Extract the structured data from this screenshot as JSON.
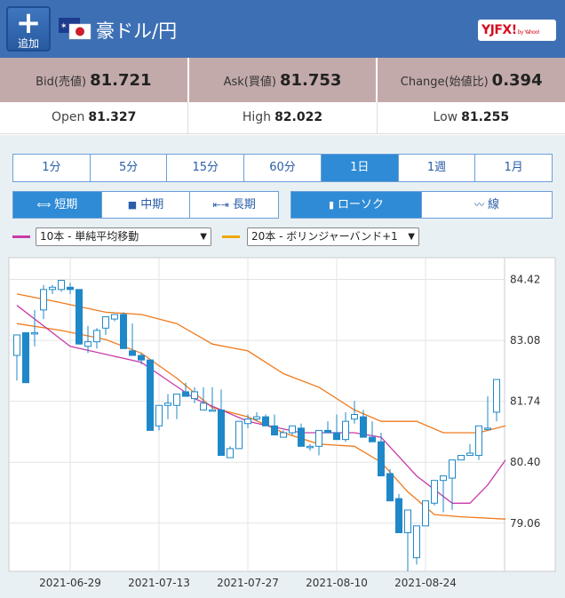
{
  "header": {
    "add_label": "追加",
    "title": "豪ドル/円",
    "logo": "YJFX!",
    "logo_small": "by Yahoo!"
  },
  "quote": {
    "bid_label": "Bid(売値)",
    "bid": "81.721",
    "ask_label": "Ask(買値)",
    "ask": "81.753",
    "change_label": "Change(始値比)",
    "change": "0.394"
  },
  "ohl": {
    "open_label": "Open",
    "open": "81.327",
    "high_label": "High",
    "high": "82.022",
    "low_label": "Low",
    "low": "81.255"
  },
  "period_tabs": [
    {
      "label": "1分"
    },
    {
      "label": "5分"
    },
    {
      "label": "15分"
    },
    {
      "label": "60分"
    },
    {
      "label": "1日"
    },
    {
      "label": "1週"
    },
    {
      "label": "1月"
    }
  ],
  "active_period": "1日",
  "term_tabs": [
    {
      "label": "短期"
    },
    {
      "label": "中期"
    },
    {
      "label": "長期"
    }
  ],
  "type_tabs": [
    {
      "label": "ローソク"
    },
    {
      "label": "線"
    }
  ],
  "indicators": {
    "ma": {
      "label": "10本 - 単純平均移動",
      "color": "#c93aa8"
    },
    "bb": {
      "label": "20本 - ボリンジャーバンド+1",
      "color": "#f0a800"
    }
  },
  "colors": {
    "candle": "#1e88c8",
    "ma": "#c93aa8",
    "bb": "#f07a1c"
  },
  "chart_data": {
    "type": "candlestick",
    "y_ticks": [
      84.42,
      83.08,
      81.74,
      80.4,
      79.06
    ],
    "ylim": [
      78.0,
      84.9
    ],
    "x_tick_labels": [
      {
        "label": "2021-06-29",
        "i": 6
      },
      {
        "label": "2021-07-13",
        "i": 16
      },
      {
        "label": "2021-07-27",
        "i": 26
      },
      {
        "label": "2021-08-10",
        "i": 36
      },
      {
        "label": "2021-08-24",
        "i": 46
      }
    ],
    "ohlc": [
      [
        82.75,
        82.9,
        82.2,
        83.2
      ],
      [
        83.25,
        82.75,
        82.5,
        82.15
      ],
      [
        83.25,
        83.75,
        82.95,
        83.25
      ],
      [
        83.75,
        84.3,
        83.55,
        84.2
      ],
      [
        84.2,
        84.3,
        84.1,
        84.25
      ],
      [
        84.2,
        84.3,
        84.15,
        84.4
      ],
      [
        84.25,
        84.35,
        84.1,
        84.2
      ],
      [
        84.2,
        83.8,
        83.75,
        83.0
      ],
      [
        82.95,
        83.4,
        82.8,
        83.05
      ],
      [
        83.05,
        83.35,
        82.9,
        83.3
      ],
      [
        83.35,
        83.6,
        83.2,
        83.6
      ],
      [
        83.55,
        83.6,
        83.5,
        83.65
      ],
      [
        83.65,
        83.7,
        83.55,
        82.9
      ],
      [
        82.85,
        83.45,
        82.8,
        82.75
      ],
      [
        82.75,
        82.8,
        82.55,
        82.65
      ],
      [
        82.65,
        82.55,
        82.35,
        81.1
      ],
      [
        81.2,
        81.35,
        81.1,
        81.65
      ],
      [
        81.65,
        81.9,
        81.35,
        81.7
      ],
      [
        81.65,
        81.9,
        81.35,
        81.9
      ],
      [
        81.95,
        82.15,
        82.15,
        81.85
      ],
      [
        81.8,
        82.05,
        81.7,
        81.95
      ],
      [
        81.55,
        82.05,
        81.55,
        81.7
      ],
      [
        81.55,
        82.05,
        81.55,
        81.55
      ],
      [
        81.55,
        82.0,
        81.45,
        80.55
      ],
      [
        80.5,
        80.75,
        80.5,
        80.7
      ],
      [
        80.7,
        81.0,
        80.7,
        81.3
      ],
      [
        81.25,
        81.45,
        81.15,
        81.35
      ],
      [
        81.35,
        81.5,
        81.3,
        81.4
      ],
      [
        81.4,
        81.45,
        81.2,
        81.2
      ],
      [
        81.2,
        81.45,
        81.2,
        81.0
      ],
      [
        80.95,
        81.1,
        80.95,
        81.05
      ],
      [
        81.05,
        81.2,
        81.0,
        81.2
      ],
      [
        81.15,
        81.25,
        81.0,
        80.75
      ],
      [
        80.75,
        80.8,
        80.65,
        80.75
      ],
      [
        80.75,
        80.95,
        80.55,
        81.1
      ],
      [
        81.1,
        81.3,
        81.05,
        81.05
      ],
      [
        81.05,
        81.45,
        81.0,
        80.9
      ],
      [
        80.9,
        81.5,
        80.85,
        81.3
      ],
      [
        81.35,
        81.75,
        81.25,
        81.45
      ],
      [
        81.4,
        81.55,
        81.45,
        80.95
      ],
      [
        80.95,
        81.3,
        80.85,
        80.85
      ],
      [
        80.85,
        81.05,
        80.85,
        80.1
      ],
      [
        80.15,
        80.25,
        80.1,
        79.55
      ],
      [
        79.6,
        79.7,
        79.25,
        78.85
      ],
      [
        78.85,
        78.55,
        78.0,
        79.35
      ],
      [
        78.3,
        78.5,
        78.15,
        79.0
      ],
      [
        79.0,
        79.55,
        79.0,
        79.55
      ],
      [
        79.5,
        79.75,
        79.45,
        80.0
      ],
      [
        80.0,
        79.9,
        79.3,
        80.1
      ],
      [
        80.05,
        80.3,
        79.35,
        80.45
      ],
      [
        80.45,
        80.5,
        80.45,
        80.55
      ],
      [
        80.55,
        80.8,
        80.55,
        80.6
      ],
      [
        80.55,
        81.15,
        80.45,
        81.2
      ],
      [
        81.15,
        81.85,
        81.1,
        81.15
      ],
      [
        81.5,
        81.95,
        81.3,
        82.22
      ]
    ],
    "ma_points": [
      [
        0,
        83.85
      ],
      [
        6,
        82.95
      ],
      [
        14,
        82.6
      ],
      [
        20,
        81.8
      ],
      [
        26,
        81.3
      ],
      [
        32,
        81.05
      ],
      [
        38,
        81.05
      ],
      [
        41,
        80.95
      ],
      [
        45,
        80.1
      ],
      [
        49,
        79.5
      ],
      [
        51,
        79.5
      ],
      [
        53,
        79.9
      ],
      [
        55,
        80.45
      ]
    ],
    "bb_points": [
      [
        0,
        84.1
      ],
      [
        4,
        83.95
      ],
      [
        10,
        83.7
      ],
      [
        14,
        83.65
      ],
      [
        18,
        83.45
      ],
      [
        22,
        83.0
      ],
      [
        26,
        82.85
      ],
      [
        30,
        82.35
      ],
      [
        34,
        82.05
      ],
      [
        38,
        81.55
      ],
      [
        41,
        81.3
      ],
      [
        45,
        81.3
      ],
      [
        48,
        81.05
      ],
      [
        52,
        81.05
      ],
      [
        55,
        81.2
      ]
    ],
    "bb_low_points": [
      [
        0,
        83.45
      ],
      [
        5,
        83.3
      ],
      [
        10,
        83.1
      ],
      [
        14,
        82.8
      ],
      [
        18,
        82.25
      ],
      [
        22,
        81.6
      ],
      [
        26,
        81.4
      ],
      [
        30,
        81.05
      ],
      [
        34,
        80.8
      ],
      [
        38,
        80.75
      ],
      [
        41,
        80.4
      ],
      [
        44,
        79.75
      ],
      [
        47,
        79.25
      ],
      [
        50,
        79.2
      ],
      [
        55,
        79.15
      ]
    ]
  }
}
